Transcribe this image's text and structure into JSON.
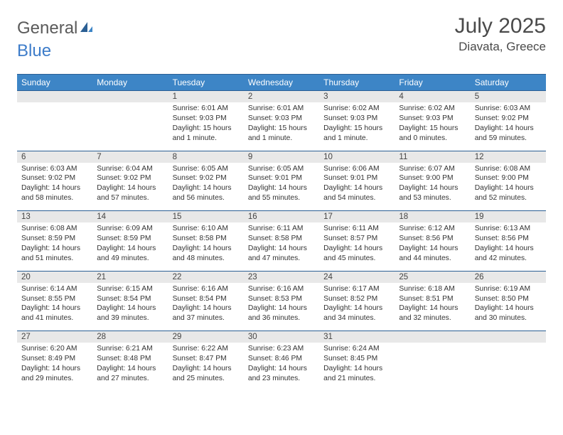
{
  "logo": {
    "part1": "General",
    "part2": "Blue"
  },
  "header": {
    "month": "July 2025",
    "location": "Diavata, Greece"
  },
  "colors": {
    "header_bg": "#3d85c6",
    "header_border": "#2b5f94",
    "daynum_bg": "#e8e8e8",
    "text": "#333333",
    "muted": "#4a4a4a"
  },
  "weekdays": [
    "Sunday",
    "Monday",
    "Tuesday",
    "Wednesday",
    "Thursday",
    "Friday",
    "Saturday"
  ],
  "weeks": [
    [
      null,
      null,
      {
        "n": "1",
        "sr": "6:01 AM",
        "ss": "9:03 PM",
        "dl": "15 hours and 1 minute."
      },
      {
        "n": "2",
        "sr": "6:01 AM",
        "ss": "9:03 PM",
        "dl": "15 hours and 1 minute."
      },
      {
        "n": "3",
        "sr": "6:02 AM",
        "ss": "9:03 PM",
        "dl": "15 hours and 1 minute."
      },
      {
        "n": "4",
        "sr": "6:02 AM",
        "ss": "9:03 PM",
        "dl": "15 hours and 0 minutes."
      },
      {
        "n": "5",
        "sr": "6:03 AM",
        "ss": "9:02 PM",
        "dl": "14 hours and 59 minutes."
      }
    ],
    [
      {
        "n": "6",
        "sr": "6:03 AM",
        "ss": "9:02 PM",
        "dl": "14 hours and 58 minutes."
      },
      {
        "n": "7",
        "sr": "6:04 AM",
        "ss": "9:02 PM",
        "dl": "14 hours and 57 minutes."
      },
      {
        "n": "8",
        "sr": "6:05 AM",
        "ss": "9:02 PM",
        "dl": "14 hours and 56 minutes."
      },
      {
        "n": "9",
        "sr": "6:05 AM",
        "ss": "9:01 PM",
        "dl": "14 hours and 55 minutes."
      },
      {
        "n": "10",
        "sr": "6:06 AM",
        "ss": "9:01 PM",
        "dl": "14 hours and 54 minutes."
      },
      {
        "n": "11",
        "sr": "6:07 AM",
        "ss": "9:00 PM",
        "dl": "14 hours and 53 minutes."
      },
      {
        "n": "12",
        "sr": "6:08 AM",
        "ss": "9:00 PM",
        "dl": "14 hours and 52 minutes."
      }
    ],
    [
      {
        "n": "13",
        "sr": "6:08 AM",
        "ss": "8:59 PM",
        "dl": "14 hours and 51 minutes."
      },
      {
        "n": "14",
        "sr": "6:09 AM",
        "ss": "8:59 PM",
        "dl": "14 hours and 49 minutes."
      },
      {
        "n": "15",
        "sr": "6:10 AM",
        "ss": "8:58 PM",
        "dl": "14 hours and 48 minutes."
      },
      {
        "n": "16",
        "sr": "6:11 AM",
        "ss": "8:58 PM",
        "dl": "14 hours and 47 minutes."
      },
      {
        "n": "17",
        "sr": "6:11 AM",
        "ss": "8:57 PM",
        "dl": "14 hours and 45 minutes."
      },
      {
        "n": "18",
        "sr": "6:12 AM",
        "ss": "8:56 PM",
        "dl": "14 hours and 44 minutes."
      },
      {
        "n": "19",
        "sr": "6:13 AM",
        "ss": "8:56 PM",
        "dl": "14 hours and 42 minutes."
      }
    ],
    [
      {
        "n": "20",
        "sr": "6:14 AM",
        "ss": "8:55 PM",
        "dl": "14 hours and 41 minutes."
      },
      {
        "n": "21",
        "sr": "6:15 AM",
        "ss": "8:54 PM",
        "dl": "14 hours and 39 minutes."
      },
      {
        "n": "22",
        "sr": "6:16 AM",
        "ss": "8:54 PM",
        "dl": "14 hours and 37 minutes."
      },
      {
        "n": "23",
        "sr": "6:16 AM",
        "ss": "8:53 PM",
        "dl": "14 hours and 36 minutes."
      },
      {
        "n": "24",
        "sr": "6:17 AM",
        "ss": "8:52 PM",
        "dl": "14 hours and 34 minutes."
      },
      {
        "n": "25",
        "sr": "6:18 AM",
        "ss": "8:51 PM",
        "dl": "14 hours and 32 minutes."
      },
      {
        "n": "26",
        "sr": "6:19 AM",
        "ss": "8:50 PM",
        "dl": "14 hours and 30 minutes."
      }
    ],
    [
      {
        "n": "27",
        "sr": "6:20 AM",
        "ss": "8:49 PM",
        "dl": "14 hours and 29 minutes."
      },
      {
        "n": "28",
        "sr": "6:21 AM",
        "ss": "8:48 PM",
        "dl": "14 hours and 27 minutes."
      },
      {
        "n": "29",
        "sr": "6:22 AM",
        "ss": "8:47 PM",
        "dl": "14 hours and 25 minutes."
      },
      {
        "n": "30",
        "sr": "6:23 AM",
        "ss": "8:46 PM",
        "dl": "14 hours and 23 minutes."
      },
      {
        "n": "31",
        "sr": "6:24 AM",
        "ss": "8:45 PM",
        "dl": "14 hours and 21 minutes."
      },
      null,
      null
    ]
  ],
  "labels": {
    "sunrise": "Sunrise: ",
    "sunset": "Sunset: ",
    "daylight": "Daylight: "
  }
}
